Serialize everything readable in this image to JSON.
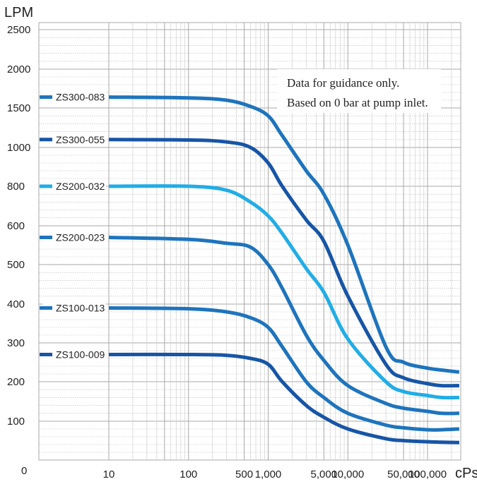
{
  "chart_data": {
    "type": "line",
    "ylabel": "LPM",
    "xlabel": "cPs",
    "x_scale": "log",
    "y_scale": "piecewise",
    "y_ticks": [
      0,
      100,
      200,
      300,
      400,
      500,
      600,
      800,
      1000,
      1500,
      2000,
      2500
    ],
    "y_tick_labels": [
      "0",
      "100",
      "200",
      "300",
      "400",
      "500",
      "600",
      "800",
      "1000",
      "1500",
      "2000",
      "2500"
    ],
    "x_ticks": [
      10,
      100,
      500,
      1000,
      5000,
      10000,
      50000,
      100000
    ],
    "x_tick_labels": [
      "10",
      "100",
      "500",
      "1,000",
      "5,000",
      "10,000",
      "50,000",
      "100,000"
    ],
    "xlim": [
      1,
      250000
    ],
    "grid": true,
    "annotation": [
      "Data for guidance only.",
      "Based on 0 bar at pump inlet."
    ],
    "colors": {
      "dark": "#1755a6",
      "mid": "#1e74bd",
      "light": "#22ade6"
    },
    "series": [
      {
        "name": "ZS300-083",
        "color": "#1e74bd",
        "x": [
          10,
          100,
          300,
          600,
          1000,
          1500,
          3000,
          5000,
          10000,
          30000,
          50000,
          100000,
          150000,
          250000
        ],
        "y": [
          1640,
          1630,
          1600,
          1520,
          1400,
          1150,
          880,
          760,
          550,
          290,
          250,
          235,
          230,
          225
        ]
      },
      {
        "name": "ZS300-055",
        "color": "#1755a6",
        "x": [
          10,
          100,
          300,
          600,
          1000,
          1500,
          3000,
          5000,
          10000,
          30000,
          50000,
          100000,
          150000,
          250000
        ],
        "y": [
          1100,
          1095,
          1070,
          1000,
          920,
          800,
          630,
          560,
          420,
          245,
          210,
          195,
          190,
          190
        ]
      },
      {
        "name": "ZS200-032",
        "color": "#22ade6",
        "x": [
          10,
          100,
          300,
          600,
          1000,
          1500,
          3000,
          5000,
          10000,
          30000,
          50000,
          100000,
          150000,
          250000
        ],
        "y": [
          800,
          800,
          780,
          720,
          650,
          580,
          490,
          430,
          310,
          200,
          175,
          165,
          160,
          160
        ]
      },
      {
        "name": "ZS200-023",
        "color": "#1e74bd",
        "x": [
          10,
          100,
          300,
          600,
          1000,
          1500,
          3000,
          5000,
          10000,
          30000,
          50000,
          100000,
          150000,
          250000
        ],
        "y": [
          570,
          565,
          555,
          545,
          500,
          440,
          320,
          255,
          190,
          145,
          133,
          125,
          120,
          120
        ]
      },
      {
        "name": "ZS100-013",
        "color": "#1e74bd",
        "x": [
          10,
          100,
          300,
          600,
          1000,
          1500,
          3000,
          5000,
          10000,
          30000,
          50000,
          100000,
          150000,
          250000
        ],
        "y": [
          390,
          388,
          380,
          365,
          340,
          290,
          200,
          160,
          120,
          90,
          83,
          78,
          78,
          80
        ]
      },
      {
        "name": "ZS100-009",
        "color": "#1755a6",
        "x": [
          10,
          100,
          300,
          600,
          1000,
          1500,
          3000,
          5000,
          10000,
          30000,
          50000,
          100000,
          150000,
          250000
        ],
        "y": [
          270,
          270,
          268,
          260,
          245,
          200,
          140,
          110,
          80,
          55,
          50,
          47,
          46,
          45
        ]
      }
    ]
  }
}
